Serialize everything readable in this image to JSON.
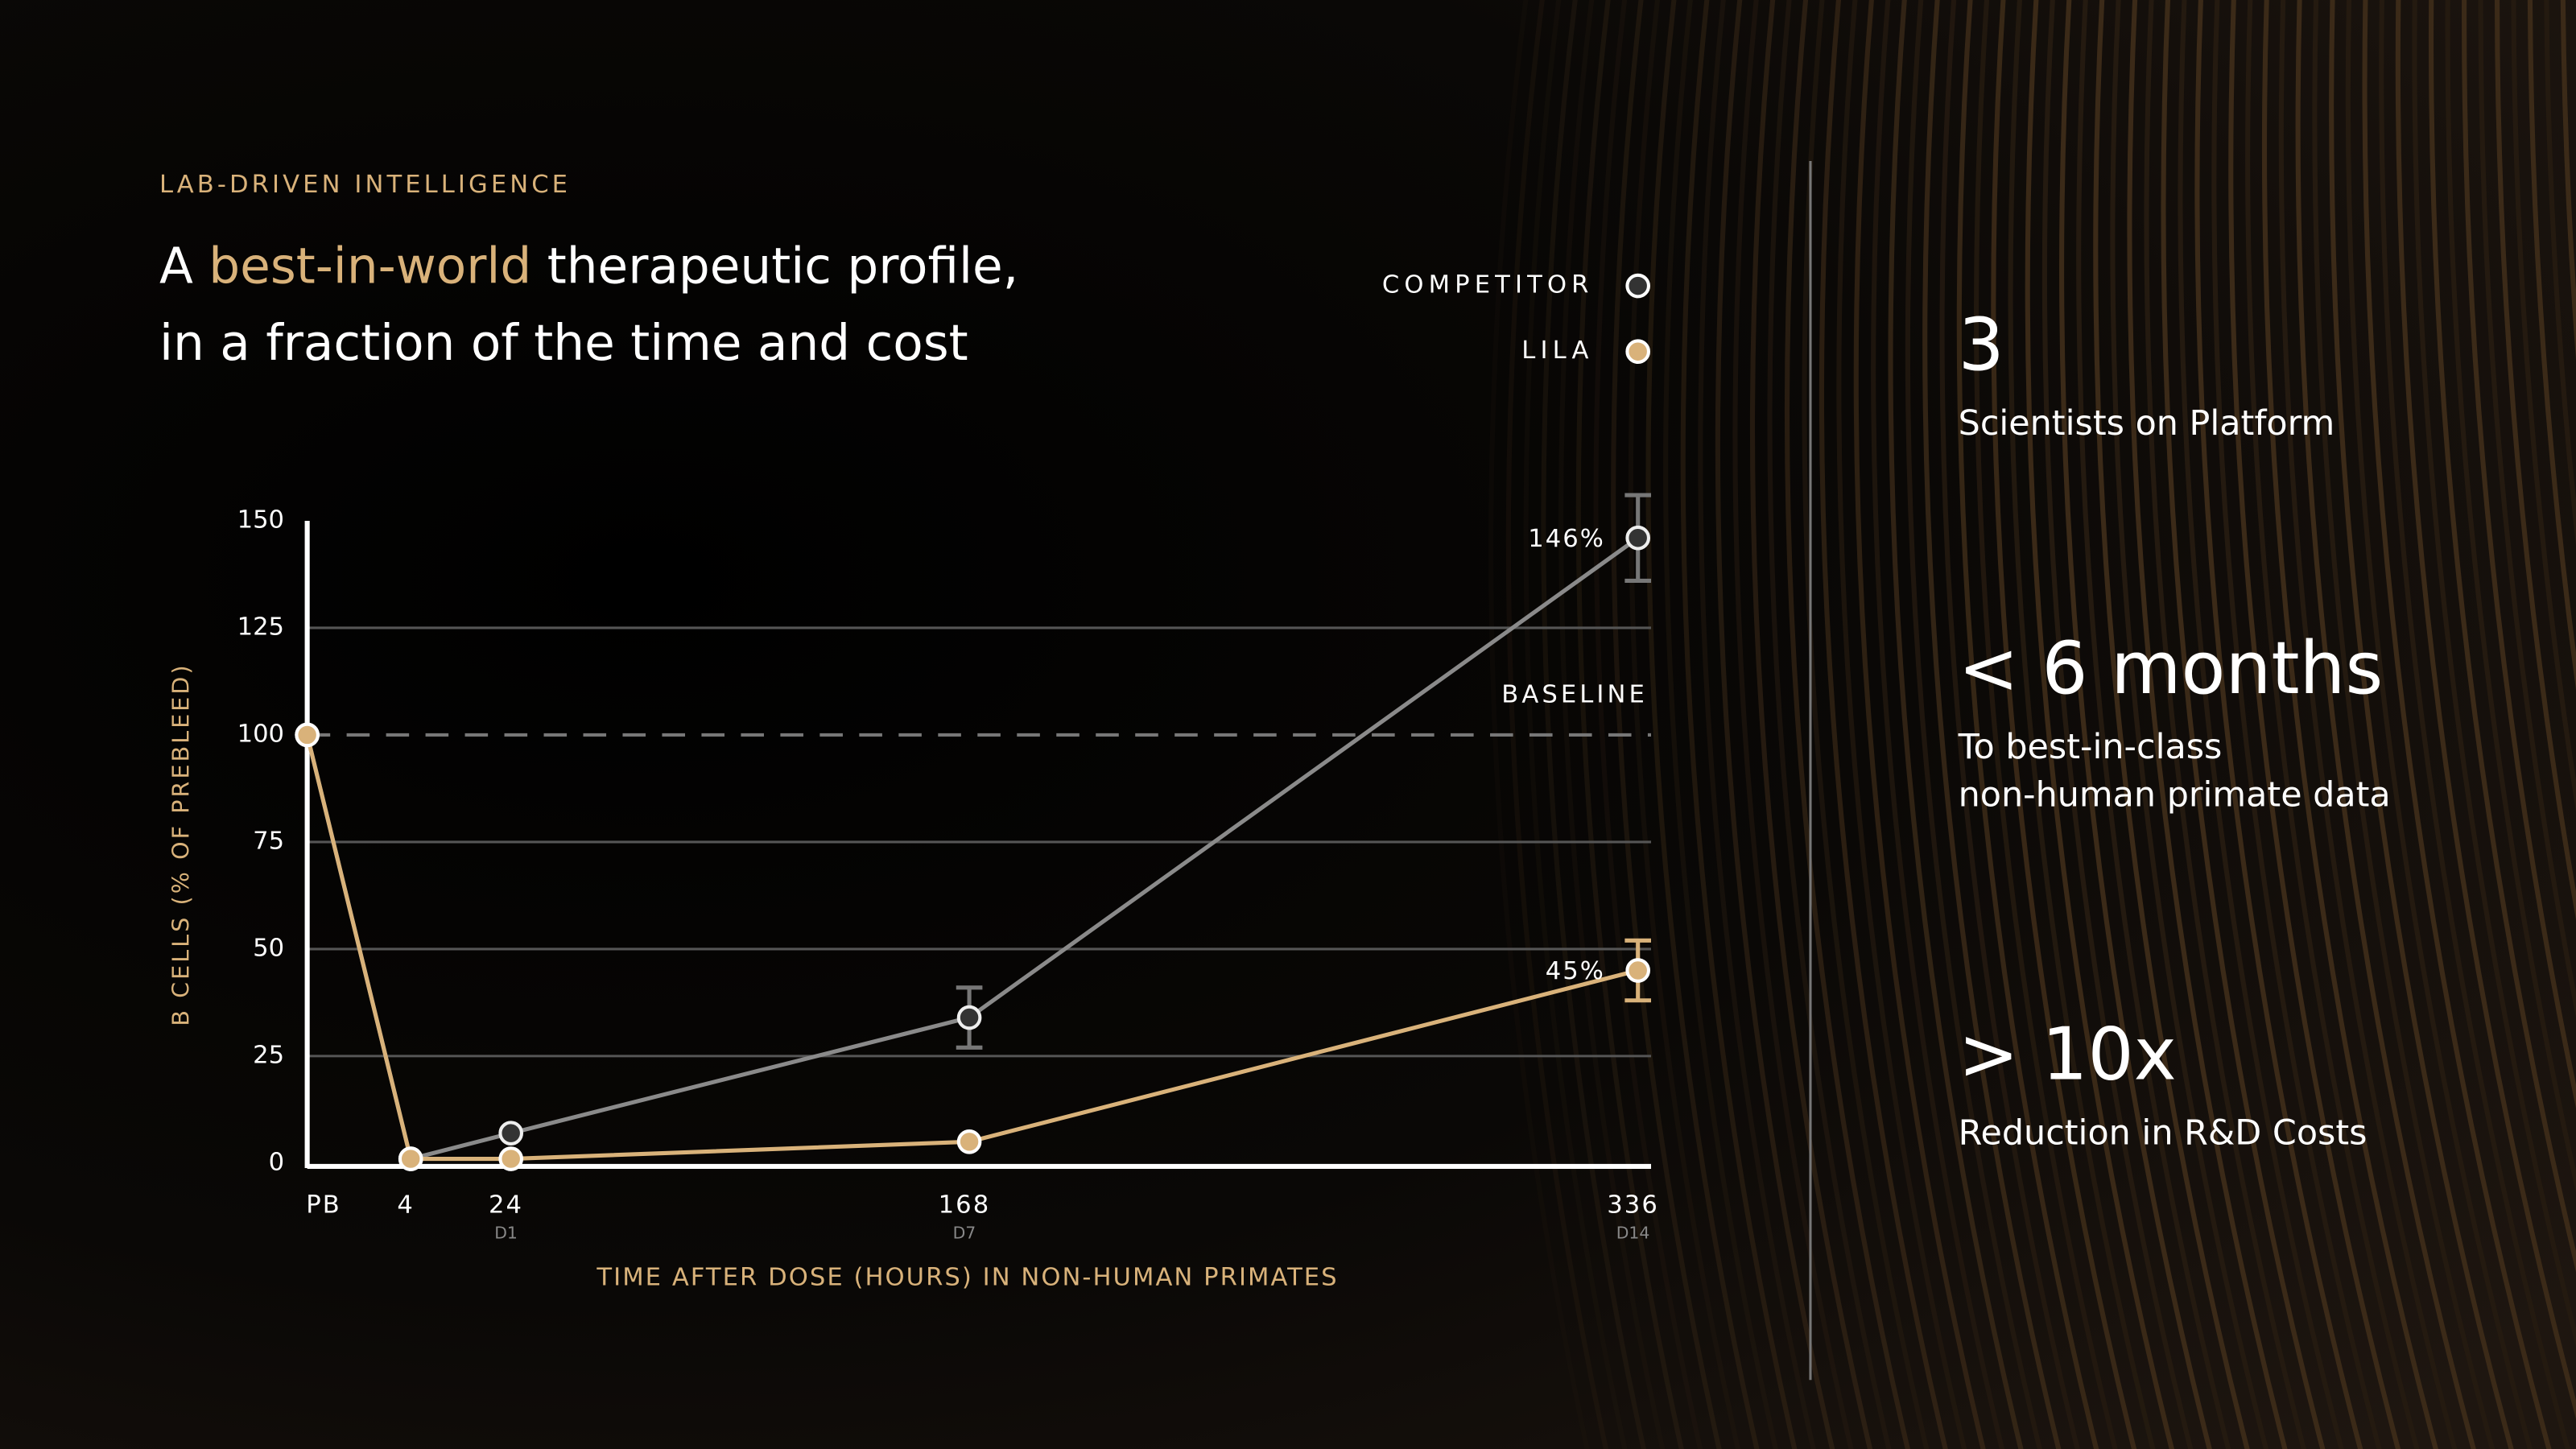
{
  "header": {
    "eyebrow": "LAB-DRIVEN INTELLIGENCE",
    "title_parts": [
      "A ",
      "best-in-world",
      " therapeutic profile,"
    ],
    "title_line2": "in a fraction of the time and cost"
  },
  "chart_data": {
    "type": "line",
    "y_label": "B CELLS (% OF PREBLEED)",
    "x_label": "TIME AFTER DOSE (HOURS) IN NON-HUMAN PRIMATES",
    "categories": [
      "PB",
      "4",
      "24",
      "168",
      "336"
    ],
    "category_sublabels": [
      null,
      null,
      "D1",
      "D7",
      "D14"
    ],
    "series": [
      {
        "name": "COMPETITOR",
        "color": "#8a8a8a",
        "values": [
          100,
          1,
          7,
          34,
          146
        ],
        "errors": [
          null,
          null,
          null,
          7,
          10
        ],
        "value_labels": [
          null,
          null,
          null,
          null,
          "146%"
        ]
      },
      {
        "name": "LILA",
        "color": "#d9b27a",
        "values": [
          100,
          1,
          1,
          5,
          45
        ],
        "errors": [
          null,
          null,
          null,
          null,
          7
        ],
        "value_labels": [
          null,
          null,
          null,
          null,
          "45%"
        ]
      }
    ],
    "ylim": [
      0,
      150
    ],
    "yticks": [
      0,
      25,
      50,
      75,
      100,
      125,
      150
    ],
    "grid": true,
    "baseline": 100,
    "baseline_label": "BASELINE"
  },
  "stats": [
    {
      "value": "3",
      "label": [
        "Scientists on Platform"
      ]
    },
    {
      "value": "< 6 months",
      "label": [
        "To best-in-class",
        "non-human primate data"
      ]
    },
    {
      "value": "> 10x",
      "label": [
        "Reduction in R&D Costs"
      ]
    }
  ]
}
